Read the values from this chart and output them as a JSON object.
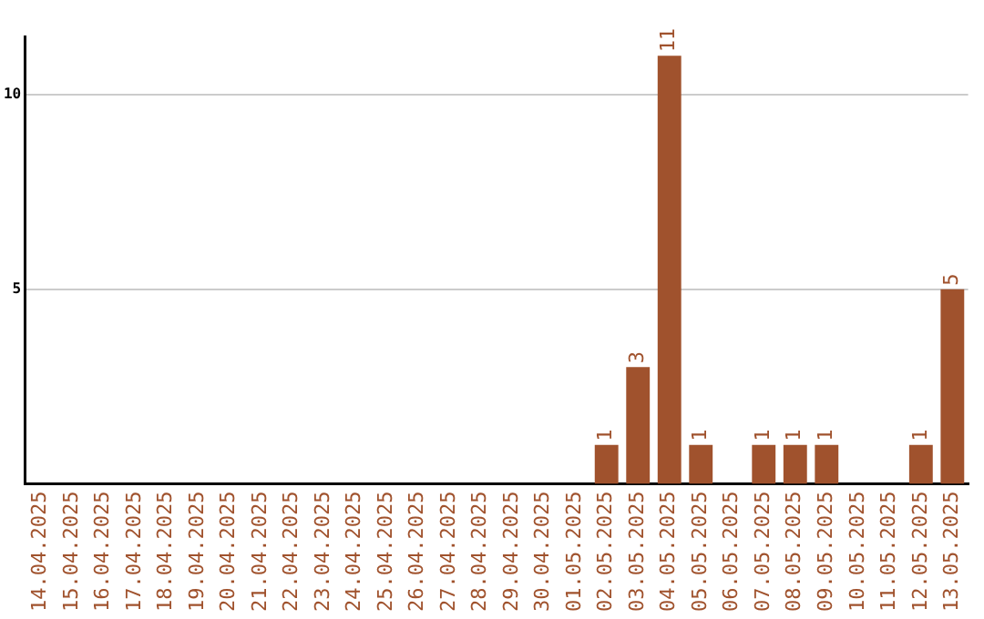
{
  "chart_data": {
    "type": "bar",
    "categories": [
      "14.04.2025",
      "15.04.2025",
      "16.04.2025",
      "17.04.2025",
      "18.04.2025",
      "19.04.2025",
      "20.04.2025",
      "21.04.2025",
      "22.04.2025",
      "23.04.2025",
      "24.04.2025",
      "25.04.2025",
      "26.04.2025",
      "27.04.2025",
      "28.04.2025",
      "29.04.2025",
      "30.04.2025",
      "01.05.2025",
      "02.05.2025",
      "03.05.2025",
      "04.05.2025",
      "05.05.2025",
      "06.05.2025",
      "07.05.2025",
      "08.05.2025",
      "09.05.2025",
      "10.05.2025",
      "11.05.2025",
      "12.05.2025",
      "13.05.2025"
    ],
    "values": [
      0,
      0,
      0,
      0,
      0,
      0,
      0,
      0,
      0,
      0,
      0,
      0,
      0,
      0,
      0,
      0,
      0,
      0,
      1,
      3,
      11,
      1,
      0,
      1,
      1,
      1,
      0,
      0,
      1,
      5
    ],
    "value_labels": [
      null,
      null,
      null,
      null,
      null,
      null,
      null,
      null,
      null,
      null,
      null,
      null,
      null,
      null,
      null,
      null,
      null,
      null,
      "1",
      "3",
      "11",
      "1",
      null,
      "1",
      "1",
      "1",
      null,
      null,
      "1",
      "5"
    ],
    "color": "#a0522d",
    "ylim": [
      0,
      11.5
    ],
    "yticks": [
      5,
      10
    ],
    "grid": "y",
    "legend": false
  }
}
